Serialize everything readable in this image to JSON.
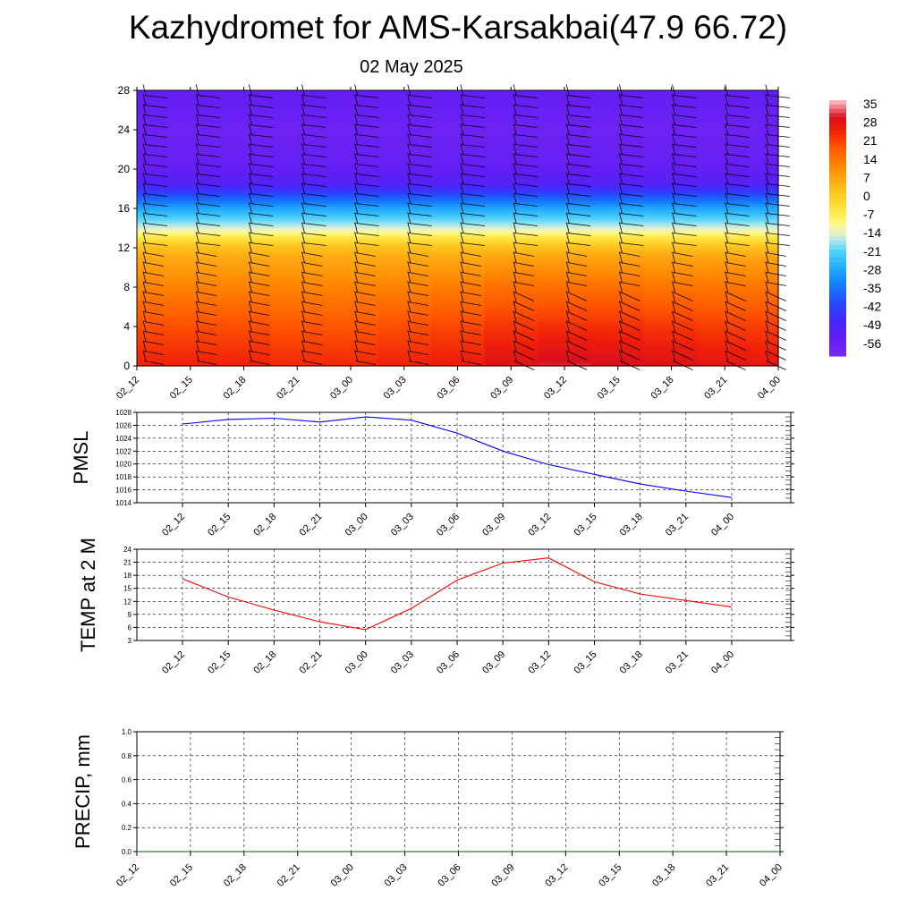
{
  "title": "Kazhydromet for AMS-Karsakbai(47.9 66.72)",
  "subtitle": "02 May 2025",
  "time_labels": [
    "02_12",
    "02_15",
    "02_18",
    "02_21",
    "03_00",
    "03_03",
    "03_06",
    "03_09",
    "03_12",
    "03_15",
    "03_18",
    "03_21",
    "04_00"
  ],
  "colors": {
    "pmsl_line": "#0000ff",
    "temp_line": "#ff0000",
    "precip_line": "#006400",
    "grid": "#000000"
  },
  "chart_data": [
    {
      "type": "heatmap",
      "name": "cross-section",
      "title": "",
      "ylabel": "",
      "ylim": [
        0,
        28
      ],
      "yticks": [
        "0",
        "4",
        "8",
        "12",
        "16",
        "20",
        "24",
        "28"
      ],
      "x": [
        "02_12",
        "02_15",
        "02_18",
        "02_21",
        "03_00",
        "03_03",
        "03_06",
        "03_09",
        "03_12",
        "03_15",
        "03_18",
        "03_21",
        "04_00"
      ],
      "levels": [
        0,
        4,
        8,
        11,
        12,
        13,
        14,
        16,
        17.5,
        18.5,
        20,
        22,
        24,
        28
      ],
      "values": [
        [
          28,
          22,
          14,
          8,
          4,
          -4,
          -14,
          -28,
          -42,
          -52,
          -56,
          -58,
          -59,
          -56
        ],
        [
          28,
          22,
          14,
          8,
          4,
          -4,
          -14,
          -28,
          -42,
          -52,
          -56,
          -58,
          -59,
          -56
        ],
        [
          28,
          22,
          14,
          8,
          4,
          -4,
          -14,
          -28,
          -42,
          -52,
          -56,
          -58,
          -59,
          -56
        ],
        [
          27,
          21,
          14,
          8,
          4,
          -4,
          -14,
          -28,
          -42,
          -52,
          -56,
          -58,
          -59,
          -56
        ],
        [
          27,
          21,
          14,
          8,
          4,
          -4,
          -14,
          -28,
          -42,
          -52,
          -56,
          -58,
          -59,
          -56
        ],
        [
          28,
          22,
          14,
          8,
          4,
          -4,
          -14,
          -28,
          -42,
          -52,
          -56,
          -58,
          -59,
          -56
        ],
        [
          29,
          23,
          15,
          8,
          4,
          -4,
          -14,
          -28,
          -42,
          -52,
          -56,
          -58,
          -59,
          -56
        ],
        [
          32,
          25,
          17,
          9,
          4,
          -4,
          -14,
          -28,
          -42,
          -52,
          -56,
          -58,
          -59,
          -56
        ],
        [
          34,
          26,
          17,
          9,
          4,
          -4,
          -14,
          -28,
          -42,
          -52,
          -56,
          -58,
          -59,
          -56
        ],
        [
          33,
          26,
          17,
          9,
          4,
          -4,
          -14,
          -28,
          -42,
          -52,
          -56,
          -58,
          -59,
          -56
        ],
        [
          32,
          25,
          16,
          9,
          4,
          -4,
          -14,
          -28,
          -42,
          -52,
          -56,
          -58,
          -59,
          -56
        ],
        [
          31,
          24,
          16,
          9,
          4,
          -4,
          -14,
          -28,
          -42,
          -52,
          -56,
          -58,
          -59,
          -56
        ],
        [
          30,
          24,
          16,
          9,
          4,
          -4,
          -14,
          -28,
          -42,
          -52,
          -56,
          -58,
          -59,
          -56
        ]
      ],
      "colorbar": {
        "labels": [
          "35",
          "28",
          "21",
          "14",
          "7",
          "0",
          "-7",
          "-14",
          "-21",
          "-28",
          "-35",
          "-42",
          "-49",
          "-56"
        ],
        "range": [
          -63,
          40
        ]
      }
    },
    {
      "type": "line",
      "name": "pmsl",
      "ylabel": "PMSL",
      "ylim": [
        1014,
        1028
      ],
      "yticks": [
        "1014",
        "1016",
        "1018",
        "1020",
        "1022",
        "1024",
        "1026",
        "1028"
      ],
      "x": [
        "02_12",
        "02_15",
        "02_18",
        "02_21",
        "03_00",
        "03_03",
        "03_06",
        "03_09",
        "03_12",
        "03_15",
        "03_18",
        "03_21",
        "04_00"
      ],
      "series": [
        {
          "values": [
            1026.2,
            1026.9,
            1027.1,
            1026.5,
            1027.3,
            1026.8,
            1024.8,
            1022.0,
            1019.9,
            1018.4,
            1016.9,
            1015.8,
            1014.8
          ]
        }
      ]
    },
    {
      "type": "line",
      "name": "temp",
      "ylabel": "TEMP at 2 M",
      "ylim": [
        3,
        24
      ],
      "yticks": [
        "3",
        "6",
        "9",
        "12",
        "15",
        "18",
        "21",
        "24"
      ],
      "x": [
        "02_12",
        "02_15",
        "02_18",
        "02_21",
        "03_00",
        "03_03",
        "03_06",
        "03_09",
        "03_12",
        "03_15",
        "03_18",
        "03_21",
        "04_00"
      ],
      "series": [
        {
          "values": [
            17.2,
            13.0,
            10.0,
            7.3,
            5.5,
            10.4,
            16.9,
            20.8,
            22.0,
            16.5,
            13.7,
            12.2,
            10.7
          ]
        }
      ]
    },
    {
      "type": "line",
      "name": "precip",
      "ylabel": "PRECIP, mm",
      "ylim": [
        0,
        1.0
      ],
      "yticks": [
        "0.0",
        "0.2",
        "0.4",
        "0.6",
        "0.8",
        "1.0"
      ],
      "x": [
        "02_12",
        "02_15",
        "02_18",
        "02_21",
        "03_00",
        "03_03",
        "03_06",
        "03_09",
        "03_12",
        "03_15",
        "03_18",
        "03_21",
        "04_00"
      ],
      "series": [
        {
          "values": [
            0,
            0,
            0,
            0,
            0,
            0,
            0,
            0,
            0,
            0,
            0,
            0,
            0
          ]
        }
      ]
    }
  ]
}
